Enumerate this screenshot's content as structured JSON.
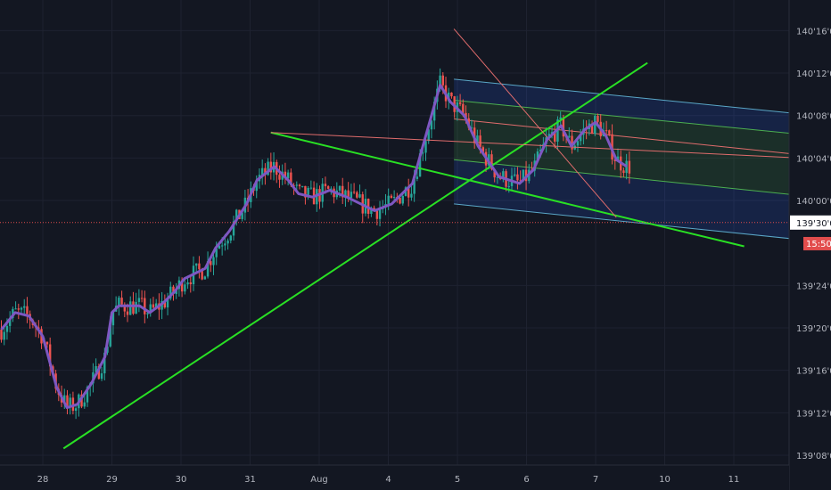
{
  "chart_data": {
    "type": "candlestick",
    "colors": {
      "background": "#131722",
      "grid": "#1e2230",
      "up_candle": "#26a69a",
      "down_candle": "#ef5350",
      "moving_average": "#7e57c2",
      "trendline": "#29e024",
      "channel_border": "#5aa7c7",
      "channel_mid": "#e06c6c",
      "current_price_line": "#e24d4d"
    },
    "y_axis": {
      "ticks": [
        {
          "value": 140.5,
          "label": "140'16'0"
        },
        {
          "value": 140.375,
          "label": "140'12'0"
        },
        {
          "value": 140.25,
          "label": "140'08'0"
        },
        {
          "value": 140.125,
          "label": "140'04'0"
        },
        {
          "value": 140.0,
          "label": "140'00'0"
        },
        {
          "value": 139.75,
          "label": "139'24'0"
        },
        {
          "value": 139.625,
          "label": "139'20'0"
        },
        {
          "value": 139.5,
          "label": "139'16'0"
        },
        {
          "value": 139.375,
          "label": "139'12'0"
        },
        {
          "value": 139.25,
          "label": "139'08'0"
        }
      ]
    },
    "x_axis": {
      "ticks": [
        {
          "t": 0,
          "label": "28"
        },
        {
          "t": 1,
          "label": "29"
        },
        {
          "t": 2,
          "label": "30"
        },
        {
          "t": 3,
          "label": "31"
        },
        {
          "t": 4,
          "label": "Aug"
        },
        {
          "t": 5,
          "label": "4"
        },
        {
          "t": 6,
          "label": "5"
        },
        {
          "t": 7,
          "label": "6"
        },
        {
          "t": 8,
          "label": "7"
        },
        {
          "t": 9,
          "label": "10"
        },
        {
          "t": 10,
          "label": "11"
        }
      ]
    },
    "current_price": {
      "value": 139.935,
      "label": "139'30'0"
    },
    "countdown": {
      "value": 139.89,
      "label": "15:50"
    },
    "moving_average": [
      [
        -0.6,
        139.62
      ],
      [
        -0.4,
        139.67
      ],
      [
        -0.2,
        139.66
      ],
      [
        0.0,
        139.6
      ],
      [
        0.2,
        139.45
      ],
      [
        0.35,
        139.39
      ],
      [
        0.5,
        139.4
      ],
      [
        0.7,
        139.46
      ],
      [
        0.9,
        139.54
      ],
      [
        1.0,
        139.67
      ],
      [
        1.1,
        139.69
      ],
      [
        1.4,
        139.69
      ],
      [
        1.55,
        139.67
      ],
      [
        1.75,
        139.7
      ],
      [
        1.9,
        139.73
      ],
      [
        2.05,
        139.77
      ],
      [
        2.35,
        139.8
      ],
      [
        2.5,
        139.86
      ],
      [
        2.7,
        139.91
      ],
      [
        2.95,
        139.99
      ],
      [
        3.1,
        140.06
      ],
      [
        3.35,
        140.1
      ],
      [
        3.55,
        140.06
      ],
      [
        3.7,
        140.02
      ],
      [
        3.9,
        140.01
      ],
      [
        4.15,
        140.03
      ],
      [
        4.4,
        140.01
      ],
      [
        4.6,
        139.99
      ],
      [
        4.8,
        139.97
      ],
      [
        5.05,
        139.99
      ],
      [
        5.35,
        140.05
      ],
      [
        5.5,
        140.16
      ],
      [
        5.75,
        140.34
      ],
      [
        5.9,
        140.29
      ],
      [
        6.1,
        140.25
      ],
      [
        6.3,
        140.16
      ],
      [
        6.5,
        140.1
      ],
      [
        6.6,
        140.07
      ],
      [
        6.9,
        140.05
      ],
      [
        7.1,
        140.09
      ],
      [
        7.3,
        140.18
      ],
      [
        7.5,
        140.22
      ],
      [
        7.65,
        140.16
      ],
      [
        7.85,
        140.21
      ],
      [
        8.0,
        140.23
      ],
      [
        8.15,
        140.19
      ],
      [
        8.3,
        140.12
      ],
      [
        8.45,
        140.1
      ]
    ],
    "channel": {
      "upper": [
        [
          5.95,
          140.357
        ],
        [
          10.95,
          140.255
        ]
      ],
      "mid": [
        [
          5.95,
          140.24
        ],
        [
          10.95,
          140.135
        ]
      ],
      "upper_mid": [
        [
          5.95,
          140.295
        ],
        [
          10.95,
          140.195
        ]
      ],
      "lower": [
        [
          5.95,
          140.12
        ],
        [
          10.95,
          140.015
        ]
      ],
      "bottom": [
        [
          5.95,
          139.99
        ],
        [
          10.95,
          139.885
        ]
      ]
    },
    "trendlines": [
      {
        "from": [
          0.3,
          139.27
        ],
        "to": [
          8.75,
          140.405
        ]
      },
      {
        "from": [
          3.3,
          140.2
        ],
        "to": [
          10.15,
          139.865
        ]
      }
    ],
    "fork_lines": [
      {
        "from": [
          3.3,
          140.2
        ],
        "to": [
          10.95,
          140.125
        ]
      },
      {
        "from": [
          5.95,
          140.505
        ],
        "to": [
          8.3,
          139.95
        ]
      }
    ]
  }
}
